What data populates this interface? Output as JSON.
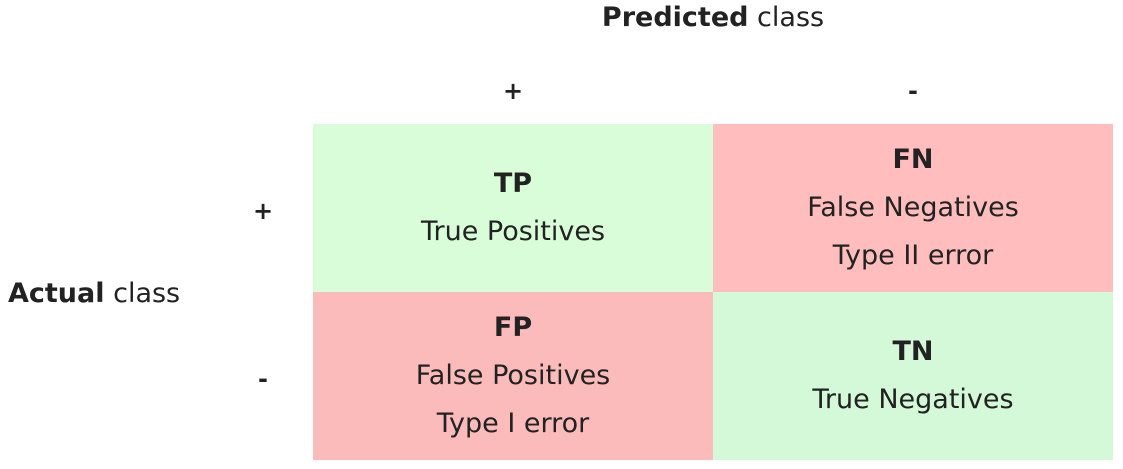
{
  "predicted_axis": {
    "title_strong": "Predicted",
    "title_rest": " class",
    "signs": [
      "+",
      "-"
    ]
  },
  "actual_axis": {
    "title_strong": "Actual",
    "title_rest": " class",
    "signs": [
      "+",
      "-"
    ]
  },
  "cells": {
    "tp": {
      "abbr": "TP",
      "line1": "True Positives",
      "color": "#d9fdd9"
    },
    "fn": {
      "abbr": "FN",
      "line1": "False Negatives",
      "line2": "Type II error",
      "color": "#ffbdbd"
    },
    "fp": {
      "abbr": "FP",
      "line1": "False Positives",
      "line2": "Type I error",
      "color": "#fbbbbb"
    },
    "tn": {
      "abbr": "TN",
      "line1": "True Negatives",
      "color": "#d3f9d8"
    }
  }
}
